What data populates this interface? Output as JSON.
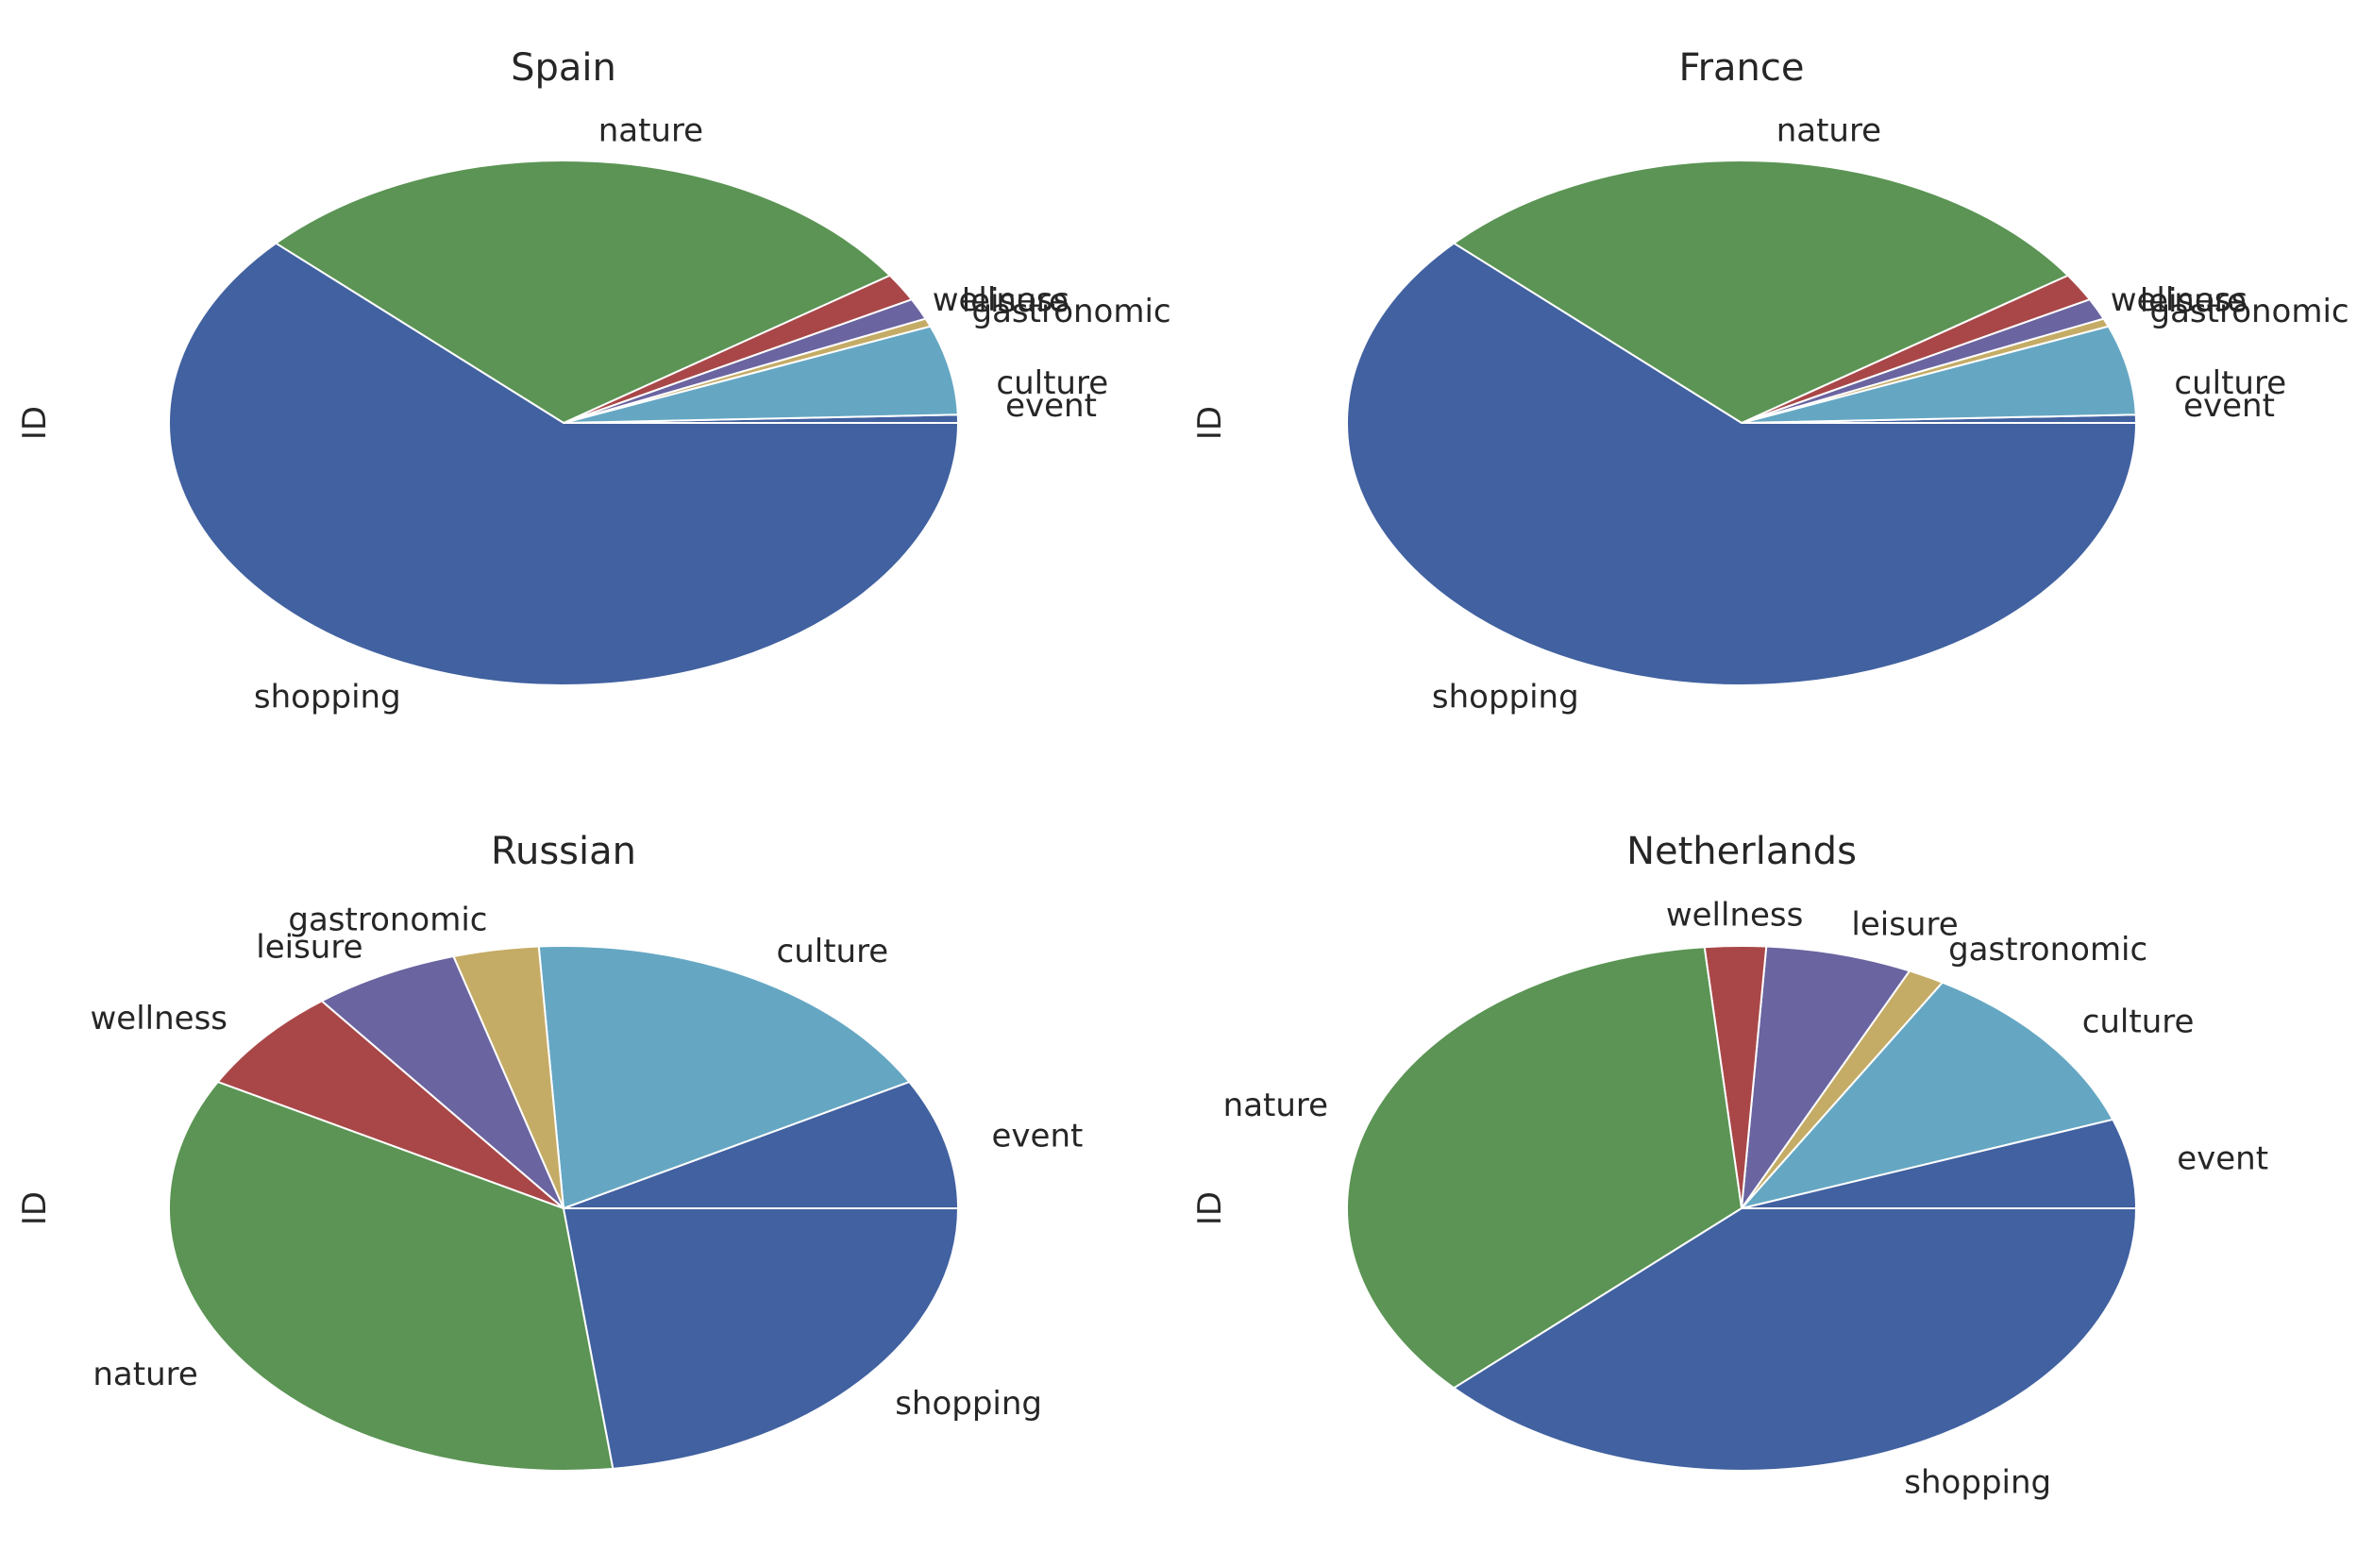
{
  "colors": {
    "shopping": "#4161a0",
    "event": "#4161a0",
    "culture": "#65a7c3",
    "gastronomic": "#c5ac66",
    "leisure": "#6a64a0",
    "wellness": "#a94748",
    "nature": "#5b9454",
    "edge": "#ffffff"
  },
  "chart_data": [
    {
      "type": "pie",
      "title": "Spain",
      "ylabel": "ID",
      "slices": [
        {
          "label": "event",
          "value": 0.5
        },
        {
          "label": "culture",
          "value": 5.5
        },
        {
          "label": "gastronomic",
          "value": 0.5
        },
        {
          "label": "leisure",
          "value": 1.3
        },
        {
          "label": "wellness",
          "value": 1.7
        },
        {
          "label": "nature",
          "value": 28.5
        },
        {
          "label": "shopping",
          "value": 62.0
        }
      ]
    },
    {
      "type": "pie",
      "title": "France",
      "ylabel": "ID",
      "slices": [
        {
          "label": "event",
          "value": 0.5
        },
        {
          "label": "culture",
          "value": 5.5
        },
        {
          "label": "gastronomic",
          "value": 0.5
        },
        {
          "label": "leisure",
          "value": 1.3
        },
        {
          "label": "wellness",
          "value": 1.7
        },
        {
          "label": "nature",
          "value": 28.5
        },
        {
          "label": "shopping",
          "value": 62.0
        }
      ]
    },
    {
      "type": "pie",
      "title": "Russian",
      "ylabel": "ID",
      "slices": [
        {
          "label": "event",
          "value": 8.0
        },
        {
          "label": "culture",
          "value": 18.0
        },
        {
          "label": "gastronomic",
          "value": 3.5
        },
        {
          "label": "leisure",
          "value": 6.0
        },
        {
          "label": "wellness",
          "value": 6.5
        },
        {
          "label": "nature",
          "value": 35.0
        },
        {
          "label": "shopping",
          "value": 23.0
        }
      ]
    },
    {
      "type": "pie",
      "title": "Netherlands",
      "ylabel": "ID",
      "slices": [
        {
          "label": "event",
          "value": 5.5
        },
        {
          "label": "culture",
          "value": 11.0
        },
        {
          "label": "gastronomic",
          "value": 1.5
        },
        {
          "label": "leisure",
          "value": 6.0
        },
        {
          "label": "wellness",
          "value": 2.5
        },
        {
          "label": "nature",
          "value": 35.5
        },
        {
          "label": "shopping",
          "value": 38.0
        }
      ]
    }
  ]
}
